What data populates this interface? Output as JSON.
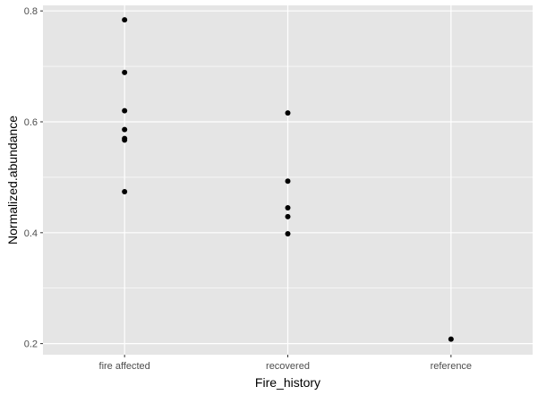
{
  "chart_data": {
    "type": "scatter",
    "title": "",
    "xlabel": "Fire_history",
    "ylabel": "Normalized.abundance",
    "categories": [
      "fire affected",
      "recovered",
      "reference"
    ],
    "ylim": [
      0.18,
      0.81
    ],
    "yticks": [
      0.2,
      0.4,
      0.6,
      0.8
    ],
    "ytick_labels": [
      "0.2",
      "0.4",
      "0.6",
      "0.8"
    ],
    "grid": true,
    "legend": "none",
    "points": [
      {
        "category": "fire affected",
        "y": 0.784
      },
      {
        "category": "fire affected",
        "y": 0.689
      },
      {
        "category": "fire affected",
        "y": 0.62
      },
      {
        "category": "fire affected",
        "y": 0.586
      },
      {
        "category": "fire affected",
        "y": 0.57
      },
      {
        "category": "fire affected",
        "y": 0.567
      },
      {
        "category": "fire affected",
        "y": 0.474
      },
      {
        "category": "recovered",
        "y": 0.616
      },
      {
        "category": "recovered",
        "y": 0.493
      },
      {
        "category": "recovered",
        "y": 0.445
      },
      {
        "category": "recovered",
        "y": 0.429
      },
      {
        "category": "recovered",
        "y": 0.398
      },
      {
        "category": "reference",
        "y": 0.208
      }
    ],
    "colors": {
      "panel_background": "#e5e5e5",
      "grid_line": "#ffffff",
      "point": "#000000",
      "tick_text": "#4d4d4d",
      "axis_title": "#000000"
    }
  }
}
